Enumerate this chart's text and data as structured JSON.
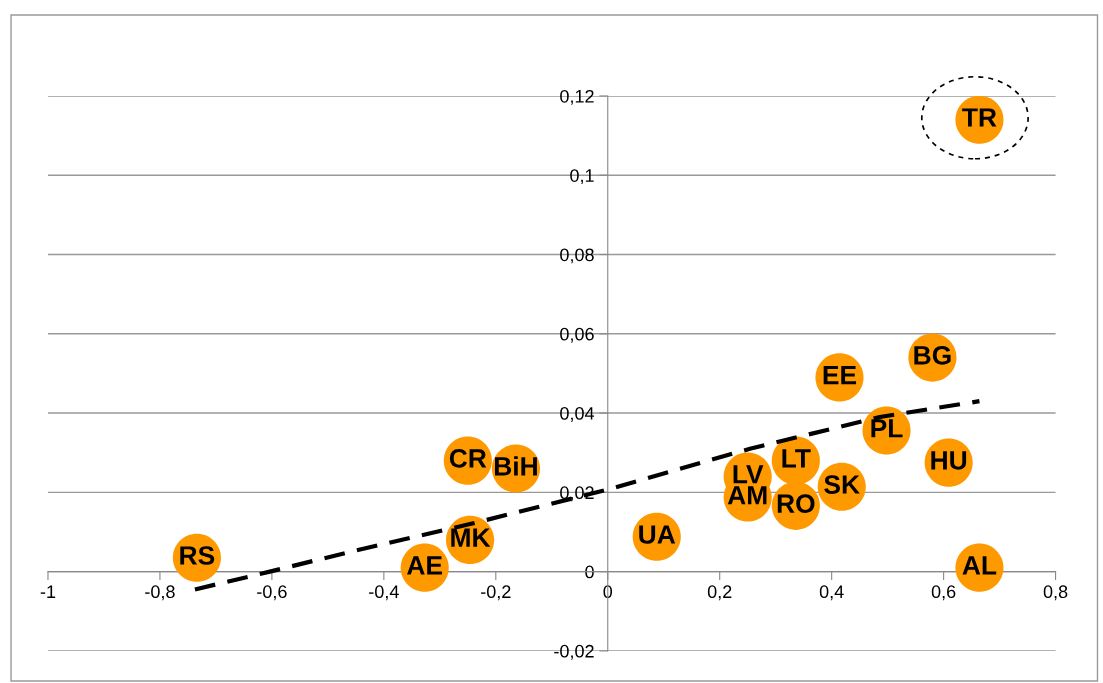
{
  "chart_data": {
    "type": "scatter",
    "xlim": [
      -1,
      0.8
    ],
    "xticks": [
      -1,
      {
        "value": -0.8,
        "label": "-0,8"
      },
      {
        "value": -0.6,
        "label": "-0,6"
      },
      {
        "value": -0.4,
        "label": "-0,4"
      },
      {
        "value": -0.2,
        "label": "-0,2"
      },
      0,
      {
        "value": 0.2,
        "label": "0,2"
      },
      {
        "value": 0.4,
        "label": "0,4"
      },
      {
        "value": 0.6,
        "label": "0,6"
      },
      {
        "value": 0.8,
        "label": "0,8"
      }
    ],
    "ylim": [
      -0.02,
      0.12
    ],
    "yticks": [
      {
        "value": -0.02,
        "label": "-0,02"
      },
      0,
      {
        "value": 0.02,
        "label": "0,02"
      },
      {
        "value": 0.04,
        "label": "0,04"
      },
      {
        "value": 0.06,
        "label": "0,06"
      },
      {
        "value": 0.08,
        "label": "0,08"
      },
      {
        "value": 0.1,
        "label": "0,1"
      },
      {
        "value": 0.12,
        "label": "0,12"
      }
    ],
    "grid": "y",
    "legend": false,
    "marker": "circle",
    "series": [
      {
        "color": "#ff9900",
        "x": [
          -0.734,
          -0.327,
          -0.246,
          -0.25,
          -0.164,
          0.0875,
          0.25,
          0.25,
          0.336,
          0.336,
          0.418,
          0.414,
          0.498,
          0.58,
          0.609,
          0.664,
          0.664
        ],
        "values": [
          0.0035,
          0.001,
          0.008,
          0.028,
          0.026,
          0.0088,
          0.024,
          0.0187,
          0.028,
          0.0166,
          0.0214,
          0.049,
          0.0356,
          0.054,
          0.0275,
          0.001,
          0.114
        ]
      },
      {
        "type": "line",
        "color": "#000000",
        "line_style": "dashed",
        "marker": "none",
        "x": [
          -0.7375,
          -0.6036,
          -0.46,
          -0.246,
          0,
          0.254,
          0.486,
          0.664
        ],
        "values": [
          -0.0045,
          0,
          0.005,
          0.012,
          0.0207,
          0.031,
          0.039,
          0.043
        ]
      }
    ],
    "annotations": [
      {
        "text": "RS",
        "x": -0.734,
        "y": 0.0035
      },
      {
        "text": "AE",
        "x": -0.327,
        "y": 0.001
      },
      {
        "text": "MK",
        "x": -0.246,
        "y": 0.008
      },
      {
        "text": "CR",
        "x": -0.25,
        "y": 0.028
      },
      {
        "text": "BiH",
        "x": -0.164,
        "y": 0.026
      },
      {
        "text": "UA",
        "x": 0.0875,
        "y": 0.0088
      },
      {
        "text": "LV",
        "x": 0.25,
        "y": 0.024
      },
      {
        "text": "AM",
        "x": 0.25,
        "y": 0.0187
      },
      {
        "text": "LT",
        "x": 0.336,
        "y": 0.028
      },
      {
        "text": "RO",
        "x": 0.336,
        "y": 0.0166
      },
      {
        "text": "SK",
        "x": 0.418,
        "y": 0.0214
      },
      {
        "text": "EE",
        "x": 0.414,
        "y": 0.049
      },
      {
        "text": "PL",
        "x": 0.498,
        "y": 0.0356
      },
      {
        "text": "BG",
        "x": 0.58,
        "y": 0.054
      },
      {
        "text": "HU",
        "x": 0.609,
        "y": 0.0275
      },
      {
        "text": "AL",
        "x": 0.664,
        "y": 0.001
      },
      {
        "text": "TR",
        "x": 0.664,
        "y": 0.114
      }
    ]
  }
}
